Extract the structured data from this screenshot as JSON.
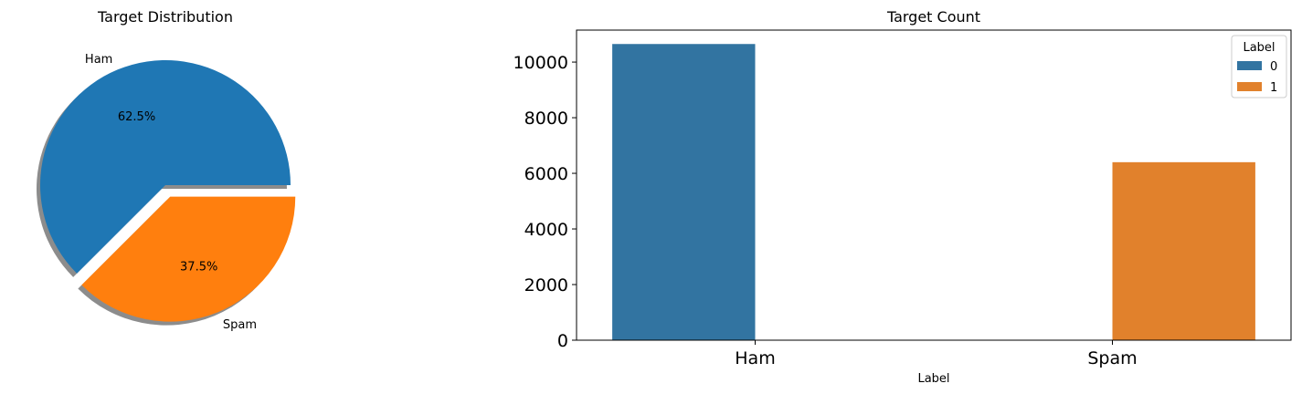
{
  "chart_data": [
    {
      "type": "pie",
      "title": "Target Distribution",
      "slices": [
        {
          "label": "Ham",
          "value": 62.5,
          "pct_label": "62.5%",
          "color": "#1f77b4",
          "explode": 0
        },
        {
          "label": "Spam",
          "value": 37.5,
          "pct_label": "37.5%",
          "color": "#ff7f0e",
          "explode": 0.1
        }
      ],
      "shadow": true
    },
    {
      "type": "bar",
      "title": "Target Count",
      "categories": [
        "Ham",
        "Spam"
      ],
      "series": [
        {
          "name": "0",
          "values": [
            10650,
            0
          ],
          "color": "#3274a1"
        },
        {
          "name": "1",
          "values": [
            0,
            6400
          ],
          "color": "#e1812c"
        }
      ],
      "xlabel": "Label",
      "ylabel": "",
      "ylim": [
        0,
        11150
      ],
      "yticks": [
        0,
        2000,
        4000,
        6000,
        8000,
        10000
      ],
      "legend": {
        "title": "Label",
        "position": "top-right"
      },
      "grid": false
    }
  ]
}
